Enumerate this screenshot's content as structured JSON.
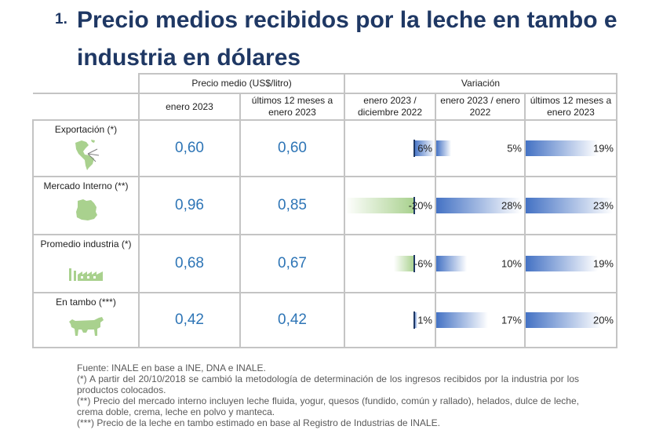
{
  "title": {
    "number": "1.",
    "text": "Precio medios recibidos por la leche en tambo e industria en dólares"
  },
  "table": {
    "group_headers": {
      "price": "Precio medio (US$/litro)",
      "variation": "Variación"
    },
    "col_headers": {
      "jan2023": "enero 2023",
      "last12_price": "últimos 12 meses a enero 2023",
      "jan_dec": "enero 2023 / diciembre 2022",
      "jan_jan": "enero 2023 / enero 2022",
      "last12_var": "últimos 12 meses a enero 2023"
    },
    "rows": [
      {
        "label": "Exportación (*)",
        "icon": "americas-map-icon",
        "price_jan2023": "0,60",
        "price_last12": "0,60",
        "var": [
          {
            "text": "6%",
            "value": 6
          },
          {
            "text": "5%",
            "value": 5
          },
          {
            "text": "19%",
            "value": 19
          }
        ]
      },
      {
        "label": "Mercado Interno (**)",
        "icon": "uruguay-map-icon",
        "price_jan2023": "0,96",
        "price_last12": "0,85",
        "var": [
          {
            "text": "-20%",
            "value": -20
          },
          {
            "text": "28%",
            "value": 28
          },
          {
            "text": "23%",
            "value": 23
          }
        ]
      },
      {
        "label": "Promedio industria (*)",
        "icon": "factory-icon",
        "price_jan2023": "0,68",
        "price_last12": "0,67",
        "var": [
          {
            "text": "-6%",
            "value": -6
          },
          {
            "text": "10%",
            "value": 10
          },
          {
            "text": "19%",
            "value": 19
          }
        ]
      },
      {
        "label": "En tambo (***)",
        "icon": "cow-icon",
        "price_jan2023": "0,42",
        "price_last12": "0,42",
        "var": [
          {
            "text": "1%",
            "value": 1
          },
          {
            "text": "17%",
            "value": 17
          },
          {
            "text": "20%",
            "value": 20
          }
        ]
      }
    ]
  },
  "colors": {
    "title": "#1f3864",
    "value": "#2e75b6",
    "bar_positive": "#4472c4",
    "bar_negative": "#a9d18e",
    "icon": "#a9d18e"
  },
  "notes": {
    "source": "Fuente: INALE en base a INE, DNA e INALE.",
    "note1": "(*) A partir del 20/10/2018 se cambió la metodología de determinación de los ingresos recibidos por la industria por los productos colocados.",
    "note2": "(**) Precio del mercado interno incluyen leche fluida, yogur, quesos (fundido, común y rallado), helados, dulce de leche, crema doble, crema, leche en polvo y manteca.",
    "note3": "(***) Precio de la leche en tambo estimado en base al Registro de Industrias de INALE."
  }
}
